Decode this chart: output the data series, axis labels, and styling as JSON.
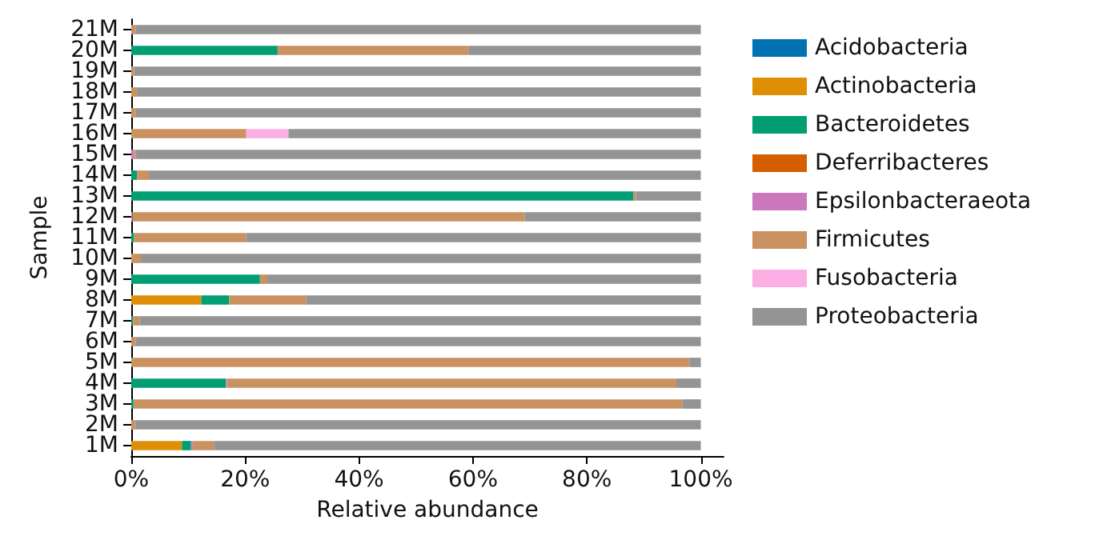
{
  "chart_data": {
    "type": "bar",
    "orientation": "horizontal",
    "stacked": true,
    "xlabel": "Relative abundance",
    "ylabel": "Sample",
    "legend": "right",
    "grid": false,
    "categories": [
      "21M",
      "20M",
      "19M",
      "18M",
      "17M",
      "16M",
      "15M",
      "14M",
      "13M",
      "12M",
      "11M",
      "10M",
      "9M",
      "8M",
      "7M",
      "6M",
      "5M",
      "4M",
      "3M",
      "2M",
      "1M"
    ],
    "xlim": [
      0,
      104
    ],
    "xticks": [
      {
        "value": 0,
        "label": "0%"
      },
      {
        "value": 20,
        "label": "20%"
      },
      {
        "value": 40,
        "label": "40%"
      },
      {
        "value": 60,
        "label": "60%"
      },
      {
        "value": 80,
        "label": "80%"
      },
      {
        "value": 100,
        "label": "100%"
      }
    ],
    "series": [
      {
        "name": "Acidobacteria",
        "color": "#0173b2",
        "values": [
          0,
          0,
          0,
          0,
          0,
          0,
          0,
          0,
          0,
          0,
          0,
          0,
          0,
          0,
          0,
          0,
          0,
          0,
          0,
          0,
          0
        ]
      },
      {
        "name": "Actinobacteria",
        "color": "#de8f05",
        "values": [
          0,
          0,
          0,
          0,
          0,
          0,
          0,
          0,
          0,
          0,
          0,
          0,
          0,
          12.3,
          0,
          0,
          0,
          0,
          0,
          0,
          8.9
        ]
      },
      {
        "name": "Bacteroidetes",
        "color": "#029e73",
        "values": [
          0,
          25.7,
          0,
          0,
          0,
          0,
          0,
          1.0,
          88.2,
          0,
          0.5,
          0,
          22.6,
          4.9,
          0.3,
          0,
          0,
          16.6,
          0.4,
          0,
          1.6
        ]
      },
      {
        "name": "Deferribacteres",
        "color": "#d55e00",
        "values": [
          0,
          0,
          0,
          0,
          0,
          0,
          0,
          0,
          0,
          0,
          0,
          0,
          0,
          0,
          0,
          0,
          0,
          0,
          0,
          0,
          0
        ]
      },
      {
        "name": "Epsilonbacteraeota",
        "color": "#cc78bc",
        "values": [
          0,
          0,
          0,
          0,
          0,
          0,
          0.5,
          0,
          0,
          0.2,
          0,
          0,
          0,
          0,
          0,
          0,
          0,
          0.2,
          0,
          0,
          0.3
        ]
      },
      {
        "name": "Firmicutes",
        "color": "#ca9161",
        "values": [
          0.8,
          33.5,
          0.5,
          1.0,
          0.8,
          20.2,
          0.3,
          2.1,
          0.4,
          68.9,
          19.7,
          1.7,
          1.3,
          13.5,
          1.2,
          0.8,
          98.0,
          78.9,
          96.4,
          0.8,
          3.7
        ]
      },
      {
        "name": "Fusobacteria",
        "color": "#fbafe4",
        "values": [
          0,
          0,
          0,
          0,
          0,
          7.4,
          0,
          0,
          0,
          0,
          0,
          0,
          0,
          0,
          0,
          0,
          0,
          0,
          0,
          0,
          0
        ]
      },
      {
        "name": "Proteobacteria",
        "color": "#949494",
        "values": [
          99.2,
          40.8,
          99.5,
          99.0,
          99.2,
          72.4,
          99.2,
          96.9,
          11.4,
          30.9,
          79.8,
          98.3,
          76.1,
          69.3,
          98.5,
          99.2,
          2.0,
          4.3,
          3.2,
          99.2,
          85.5
        ]
      }
    ]
  }
}
